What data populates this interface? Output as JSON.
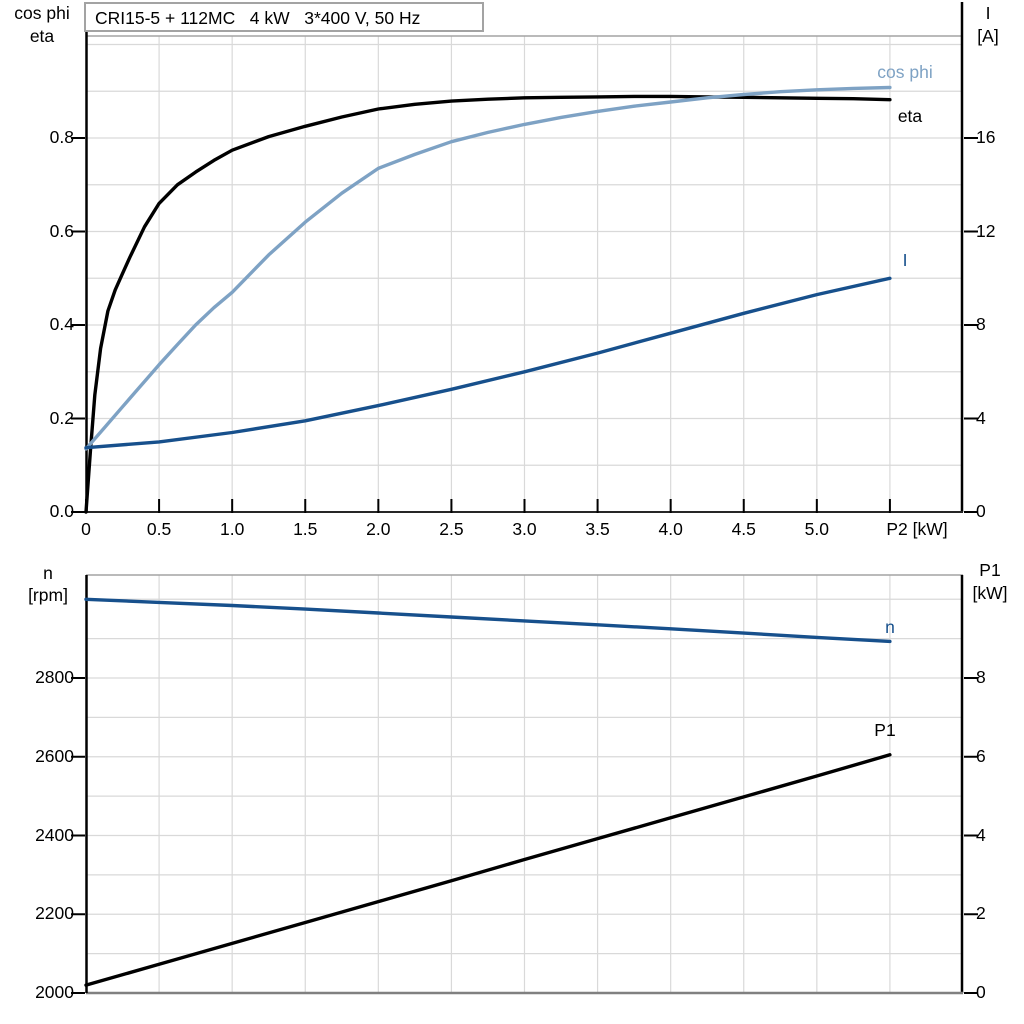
{
  "header": {
    "title": "CRI15-5 + 112MC   4 kW   3*400 V, 50 Hz"
  },
  "colors": {
    "black": "#000000",
    "dark_blue": "#17508c",
    "light_blue": "#7ea2c4",
    "grid": "#d9d9d9",
    "frame_border": "#a3a3a3",
    "bottom_axis_gray": "#808080",
    "top_axis_dark": "#262626"
  },
  "labels": {
    "top_left_axis_1": "cos phi",
    "top_left_axis_2": "eta",
    "top_right_axis_1": "I",
    "top_right_axis_2": "[A]",
    "x_axis": "P2 [kW]",
    "bottom_left_axis_1": "n",
    "bottom_left_axis_2": "[rpm]",
    "bottom_right_axis_1": "P1",
    "bottom_right_axis_2": "[kW]",
    "curve_cos_phi": "cos phi",
    "curve_eta": "eta",
    "curve_I": "I",
    "curve_n": "n",
    "curve_P1": "P1"
  },
  "chart_data": [
    {
      "id": "top",
      "type": "line",
      "title": "CRI15-5 + 112MC   4 kW   3*400 V, 50 Hz",
      "xlabel": "P2 [kW]",
      "x_range": [
        0,
        6
      ],
      "x_grid_step": 0.5,
      "x_tick_labels": [
        "0",
        "0.5",
        "1.0",
        "1.5",
        "2.0",
        "2.5",
        "3.0",
        "3.5",
        "4.0",
        "4.5",
        "5.0"
      ],
      "y_left": {
        "label": "cos phi / eta",
        "range": [
          0,
          1.0
        ],
        "tick_labels": [
          "0.0",
          "0.2",
          "0.4",
          "0.6",
          "0.8"
        ],
        "grid_step": 0.1
      },
      "y_right": {
        "label": "I [A]",
        "range": [
          0,
          20
        ],
        "tick_labels": [
          "0",
          "4",
          "8",
          "12",
          "16"
        ]
      },
      "grid": true,
      "legend_position": "inline-curve-labels",
      "series": [
        {
          "name": "eta",
          "axis": "left",
          "color": "#000000",
          "points": [
            [
              0,
              0
            ],
            [
              0.03,
              0.13
            ],
            [
              0.06,
              0.25
            ],
            [
              0.1,
              0.35
            ],
            [
              0.15,
              0.43
            ],
            [
              0.2,
              0.475
            ],
            [
              0.25,
              0.51
            ],
            [
              0.3,
              0.545
            ],
            [
              0.4,
              0.61
            ],
            [
              0.5,
              0.66
            ],
            [
              0.625,
              0.7
            ],
            [
              0.75,
              0.727
            ],
            [
              0.875,
              0.752
            ],
            [
              1.0,
              0.774
            ],
            [
              1.25,
              0.803
            ],
            [
              1.5,
              0.825
            ],
            [
              1.75,
              0.845
            ],
            [
              2.0,
              0.862
            ],
            [
              2.25,
              0.872
            ],
            [
              2.5,
              0.879
            ],
            [
              2.75,
              0.883
            ],
            [
              3.0,
              0.886
            ],
            [
              3.25,
              0.887
            ],
            [
              3.5,
              0.888
            ],
            [
              3.75,
              0.889
            ],
            [
              4.0,
              0.889
            ],
            [
              4.25,
              0.888
            ],
            [
              4.5,
              0.887
            ],
            [
              4.75,
              0.886
            ],
            [
              5.0,
              0.885
            ],
            [
              5.25,
              0.884
            ],
            [
              5.5,
              0.882
            ]
          ]
        },
        {
          "name": "cos phi",
          "axis": "left",
          "color": "#7ea2c4",
          "points": [
            [
              0,
              0.135
            ],
            [
              0.125,
              0.18
            ],
            [
              0.25,
              0.225
            ],
            [
              0.375,
              0.27
            ],
            [
              0.5,
              0.315
            ],
            [
              0.625,
              0.358
            ],
            [
              0.75,
              0.4
            ],
            [
              0.875,
              0.437
            ],
            [
              1.0,
              0.47
            ],
            [
              1.25,
              0.55
            ],
            [
              1.5,
              0.62
            ],
            [
              1.75,
              0.682
            ],
            [
              2.0,
              0.735
            ],
            [
              2.25,
              0.765
            ],
            [
              2.5,
              0.792
            ],
            [
              2.75,
              0.812
            ],
            [
              3.0,
              0.829
            ],
            [
              3.25,
              0.844
            ],
            [
              3.5,
              0.857
            ],
            [
              3.75,
              0.868
            ],
            [
              4.0,
              0.877
            ],
            [
              4.25,
              0.886
            ],
            [
              4.5,
              0.893
            ],
            [
              4.75,
              0.899
            ],
            [
              5.0,
              0.903
            ],
            [
              5.25,
              0.906
            ],
            [
              5.5,
              0.908
            ]
          ]
        },
        {
          "name": "I",
          "axis": "right",
          "color": "#17508c",
          "points": [
            [
              0,
              2.75
            ],
            [
              0.5,
              3.0
            ],
            [
              1.0,
              3.4
            ],
            [
              1.5,
              3.9
            ],
            [
              2.0,
              4.55
            ],
            [
              2.5,
              5.25
            ],
            [
              3.0,
              6.0
            ],
            [
              3.5,
              6.8
            ],
            [
              4.0,
              7.65
            ],
            [
              4.5,
              8.5
            ],
            [
              5.0,
              9.3
            ],
            [
              5.5,
              10.0
            ]
          ]
        }
      ]
    },
    {
      "id": "bottom",
      "type": "line",
      "xlabel": "P2 [kW]",
      "x_range": [
        0,
        6
      ],
      "x_grid_step": 0.5,
      "x_tick_labels": [],
      "y_left": {
        "label": "n [rpm]",
        "range": [
          2000,
          3060
        ],
        "tick_labels": [
          "2000",
          "2200",
          "2400",
          "2600",
          "2800"
        ],
        "grid_step": 100
      },
      "y_right": {
        "label": "P1 [kW]",
        "range": [
          0,
          10.6
        ],
        "tick_labels": [
          "0",
          "2",
          "4",
          "6",
          "8"
        ],
        "grid_step": 1
      },
      "grid": true,
      "legend_position": "inline-curve-labels",
      "series": [
        {
          "name": "n",
          "axis": "left",
          "color": "#17508c",
          "points": [
            [
              0,
              3000
            ],
            [
              0.5,
              2992
            ],
            [
              1.0,
              2984
            ],
            [
              1.5,
              2975
            ],
            [
              2.0,
              2965
            ],
            [
              2.5,
              2955
            ],
            [
              3.0,
              2945
            ],
            [
              3.5,
              2935
            ],
            [
              4.0,
              2925
            ],
            [
              4.5,
              2914
            ],
            [
              5.0,
              2903
            ],
            [
              5.5,
              2893
            ]
          ]
        },
        {
          "name": "P1",
          "axis": "right",
          "color": "#000000",
          "points": [
            [
              0,
              0.2
            ],
            [
              0.5,
              0.73
            ],
            [
              1.0,
              1.26
            ],
            [
              1.5,
              1.79
            ],
            [
              2.0,
              2.32
            ],
            [
              2.5,
              2.85
            ],
            [
              3.0,
              3.39
            ],
            [
              3.5,
              3.92
            ],
            [
              4.0,
              4.45
            ],
            [
              4.5,
              4.98
            ],
            [
              5.0,
              5.51
            ],
            [
              5.5,
              6.05
            ]
          ]
        }
      ]
    }
  ]
}
